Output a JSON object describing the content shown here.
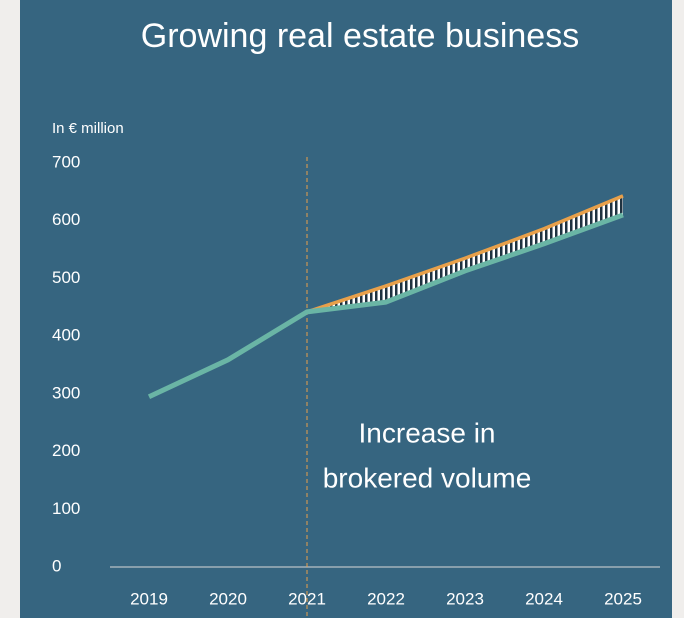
{
  "chart_data": {
    "type": "line",
    "title": "Growing real estate business",
    "y_label": "In € million",
    "annotation": [
      "Increase in",
      "brokered volume"
    ],
    "categories": [
      "2019",
      "2020",
      "2021",
      "2022",
      "2023",
      "2024",
      "2025"
    ],
    "series": [
      {
        "color": "#6ab5a5",
        "values": [
          295,
          359,
          442,
          459,
          513,
          560,
          610
        ]
      },
      {
        "color": "#e8a04a",
        "values": [
          null,
          null,
          442,
          487,
          535,
          586,
          643
        ]
      }
    ],
    "ylim": [
      0,
      700
    ],
    "yticks": [
      0,
      100,
      200,
      300,
      400,
      500,
      600,
      700
    ],
    "divider_color": "#e8a04a",
    "background": "#366580"
  }
}
